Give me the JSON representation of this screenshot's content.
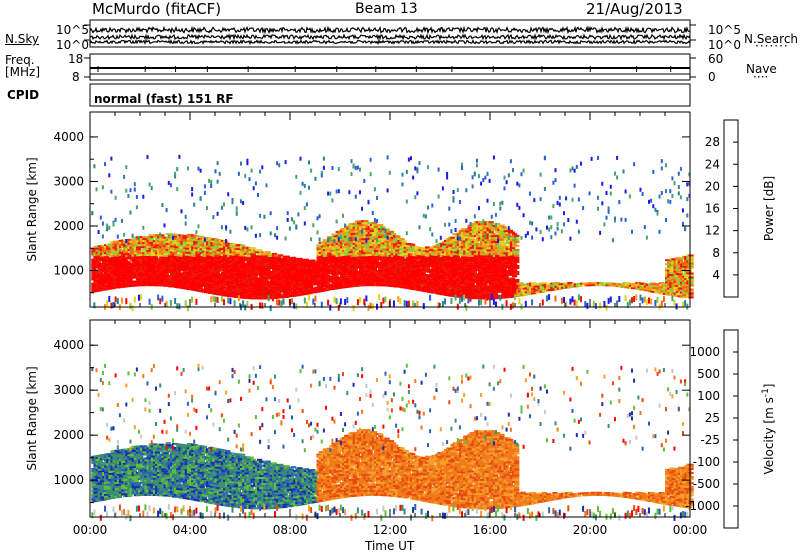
{
  "header": {
    "title": "McMurdo (fitACF)",
    "beam": "Beam 13",
    "date": "21/Aug/2013"
  },
  "top_panels": {
    "nsky_label": "N.Sky",
    "nsearch_label": "N.Search",
    "noise_ticks_left": [
      "10^5",
      "10^0"
    ],
    "noise_ticks_right": [
      "10^5",
      "10^0"
    ],
    "freq_label": "Freq.",
    "freq_unit": "[MHz]",
    "freq_ticks": [
      "18",
      "8"
    ],
    "nave_label": "Nave",
    "nave_ticks": [
      "60",
      "0"
    ],
    "cpid_label": "CPID",
    "cpid_value": "normal (fast) 151 RF"
  },
  "chart_data": [
    {
      "type": "heatmap",
      "name": "power",
      "ylabel": "Slant Range [km]",
      "xlabel": "Time UT",
      "x_ticks": [
        "00:00",
        "04:00",
        "08:00",
        "12:00",
        "16:00",
        "20:00",
        "00:00"
      ],
      "x_range_hours": [
        0,
        24
      ],
      "y_ticks": [
        1000,
        2000,
        3000,
        4000
      ],
      "y_range_km": [
        180,
        4560
      ],
      "colorbar_label": "Power [dB]",
      "colorbar_ticks": [
        "28",
        "24",
        "20",
        "16",
        "12",
        "8",
        "4"
      ],
      "colorbar_range": [
        0,
        32
      ],
      "colorbar_colors": [
        "#1b1be6",
        "#2b5fd9",
        "#2e7f9c",
        "#47a56b",
        "#8fcd3a",
        "#e6d21e",
        "#f59a1c",
        "#f06a10",
        "#e81b0a",
        "#ff0000"
      ]
    },
    {
      "type": "heatmap",
      "name": "velocity",
      "ylabel": "Slant Range [km]",
      "xlabel": "Time UT",
      "x_ticks": [
        "00:00",
        "04:00",
        "08:00",
        "12:00",
        "16:00",
        "20:00",
        "00:00"
      ],
      "x_range_hours": [
        0,
        24
      ],
      "y_ticks": [
        1000,
        2000,
        3000,
        4000
      ],
      "y_range_km": [
        180,
        4560
      ],
      "colorbar_label": "Velocity [m s",
      "colorbar_label_sup": "-1",
      "colorbar_label_end": "]",
      "colorbar_ticks": [
        "1000",
        "500",
        "100",
        "25",
        "-25",
        "-100",
        "-500",
        "-1000"
      ],
      "colorbar_colors": [
        "#1a2fa8",
        "#2a62b8",
        "#3b8e6e",
        "#5fbf3a",
        "#c8c8c8",
        "#f5a02a",
        "#f07a1a",
        "#e84a10",
        "#ff0000"
      ]
    }
  ]
}
